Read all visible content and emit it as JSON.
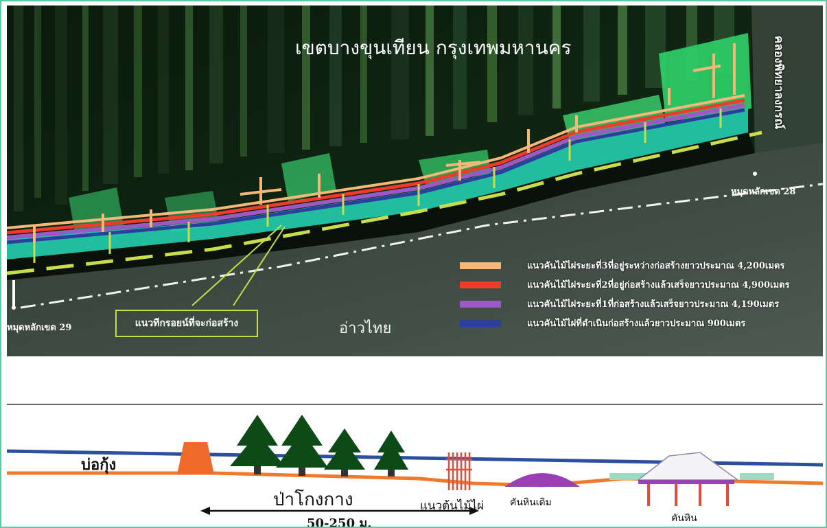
{
  "map": {
    "title": "เขตบางขุนเทียน กรุงเทพมหานคร",
    "canal_label": "คลองพิทยาลงกรณ์",
    "marker_28": "หมุดหลักเขต 28",
    "marker_29": "หมุดหลักเขต 29",
    "sea_label": "อ่าวไทย",
    "breakwater_label": "แนวทีกรอยน์ที่จะก่อสร้าง",
    "legend": [
      {
        "color": "#f5b878",
        "label": "แนวคันไม้ไผ่ระยะที่3ที่อยู่ระหว่างก่อสร้างยาวประมาณ 4,200เมตร"
      },
      {
        "color": "#ef3b2c",
        "label": "แนวคันไม้ไผ่ระยะที่2ที่อยู่ก่อสร้างแล้วเสร็จยาวประมาณ 4,900เมตร"
      },
      {
        "color": "#9b59c5",
        "label": "แนวคันไม้ไผ่ระยะที่1ที่ก่อสร้างแล้วเสร็จยาวประมาณ 4,190เมตร"
      },
      {
        "color": "#2c3e9e",
        "label": "แนวคันไม้ไผ่ที่ดำเนินก่อสร้างแล้วยาวประมาณ 900เมตร"
      }
    ]
  },
  "section": {
    "pond_label": "บ่อกุ้ง",
    "mangrove_label": "ป่าโกงกาง",
    "bamboo_label": "แนวต้นไม้ไผ่",
    "old_rock_label": "คันหินเดิม",
    "rock_label": "คันหิน",
    "distance_label": "50-250 ม."
  }
}
